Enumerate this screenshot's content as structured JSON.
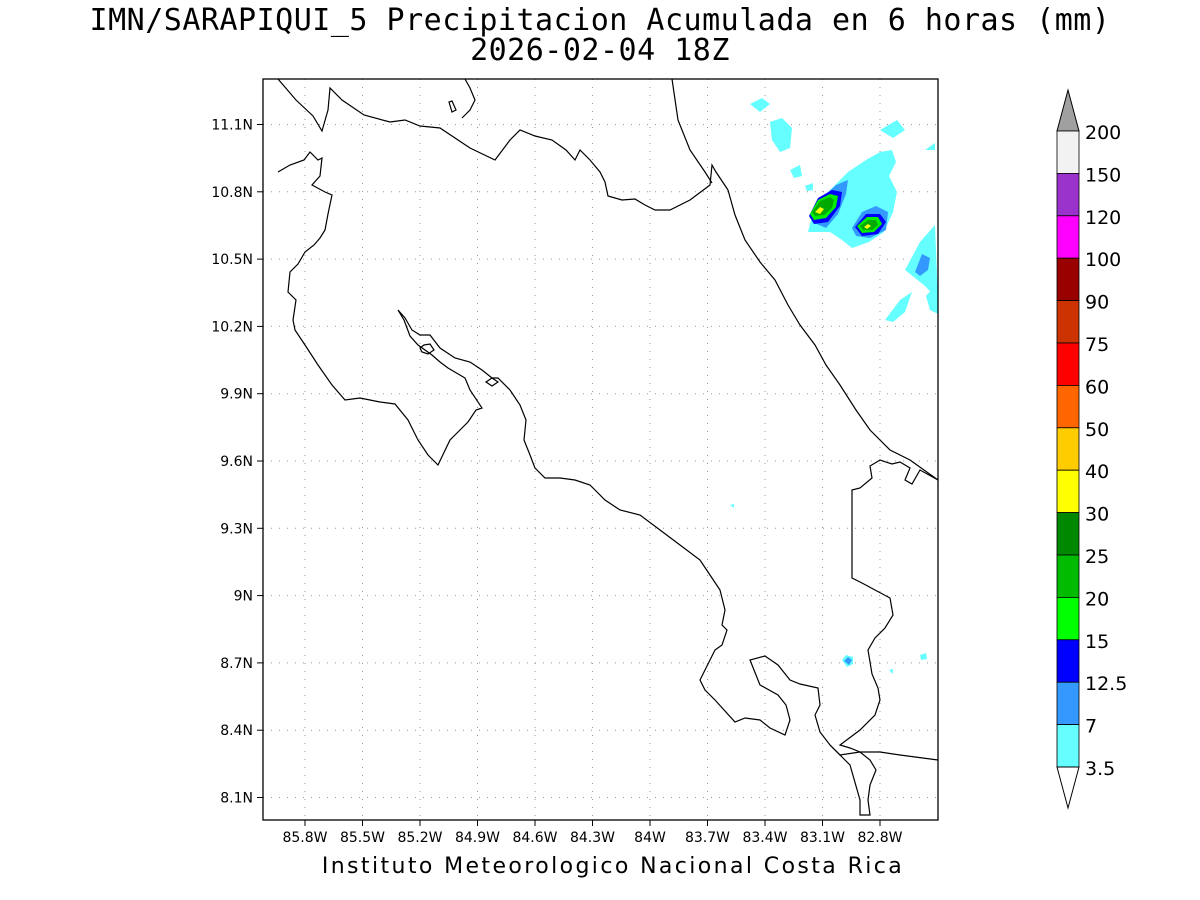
{
  "title_line1": "IMN/SARAPIQUI_5 Precipitacion Acumulada en 6 horas (mm)",
  "title_line2": "2026-02-04 18Z",
  "footer": "Instituto Meteorologico Nacional Costa Rica",
  "axes": {
    "lon_ticks": [
      "85.8W",
      "85.5W",
      "85.2W",
      "84.9W",
      "84.6W",
      "84.3W",
      "84W",
      "83.7W",
      "83.4W",
      "83.1W",
      "82.8W"
    ],
    "lat_ticks": [
      "11.1N",
      "10.8N",
      "10.5N",
      "10.2N",
      "9.9N",
      "9.6N",
      "9.3N",
      "9N",
      "8.7N",
      "8.4N",
      "8.1N"
    ]
  },
  "colorbar": {
    "labels": [
      "200",
      "150",
      "120",
      "100",
      "90",
      "75",
      "60",
      "50",
      "40",
      "30",
      "25",
      "20",
      "15",
      "12.5",
      "7",
      "3.5"
    ],
    "colors": [
      "#f2f2f2",
      "#9933cc",
      "#ff00ff",
      "#990000",
      "#cc3300",
      "#ff0000",
      "#ff6600",
      "#ffcc00",
      "#ffff00",
      "#008800",
      "#00bb00",
      "#00ff00",
      "#0000ff",
      "#3399ff",
      "#66ffff"
    ],
    "top_arrow_color": "#a0a0a0",
    "bottom_arrow_color": "#ffffff"
  },
  "grid": true
}
